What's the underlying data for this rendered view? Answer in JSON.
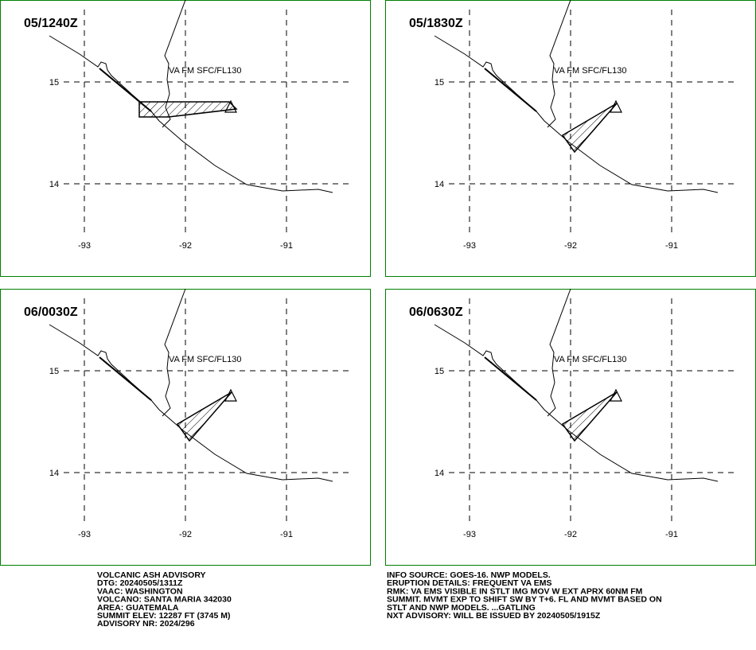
{
  "panels": [
    {
      "time": "05/1240Z",
      "label": "VA FM SFC/FL130",
      "lon_ticks": [
        -93,
        -92,
        -91
      ],
      "lat_ticks": [
        15,
        14
      ]
    },
    {
      "time": "05/1830Z",
      "label": "VA FM SFC/FL130",
      "lon_ticks": [
        -93,
        -92,
        -91
      ],
      "lat_ticks": [
        15,
        14
      ]
    },
    {
      "time": "06/0030Z",
      "label": "VA FM SFC/FL130",
      "lon_ticks": [
        -93,
        -92,
        -91
      ],
      "lat_ticks": [
        15,
        14
      ]
    },
    {
      "time": "06/0630Z",
      "label": "VA FM SFC/FL130",
      "lon_ticks": [
        -93,
        -92,
        -91
      ],
      "lat_ticks": [
        15,
        14
      ]
    }
  ],
  "advisory_left": [
    "VOLCANIC ASH ADVISORY",
    "DTG: 20240505/1311Z",
    "VAAC: WASHINGTON",
    "VOLCANO: SANTA MARIA 342030",
    "AREA: GUATEMALA",
    "SUMMIT ELEV: 12287 FT (3745 M)",
    "ADVISORY NR: 2024/296"
  ],
  "advisory_right": [
    "INFO SOURCE: GOES-16. NWP MODELS.",
    "ERUPTION DETAILS: FREQUENT VA EMS",
    "RMK: VA EMS VISIBLE IN STLT IMG MOV W EXT APRX 60NM FM",
    "SUMMIT. MVMT EXP TO SHIFT SW BY T+6. FL AND MVMT BASED ON",
    "STLT AND NWP MODELS. ...GATLING",
    "NXT ADVISORY: WILL BE ISSUED BY 20240505/1915Z"
  ]
}
